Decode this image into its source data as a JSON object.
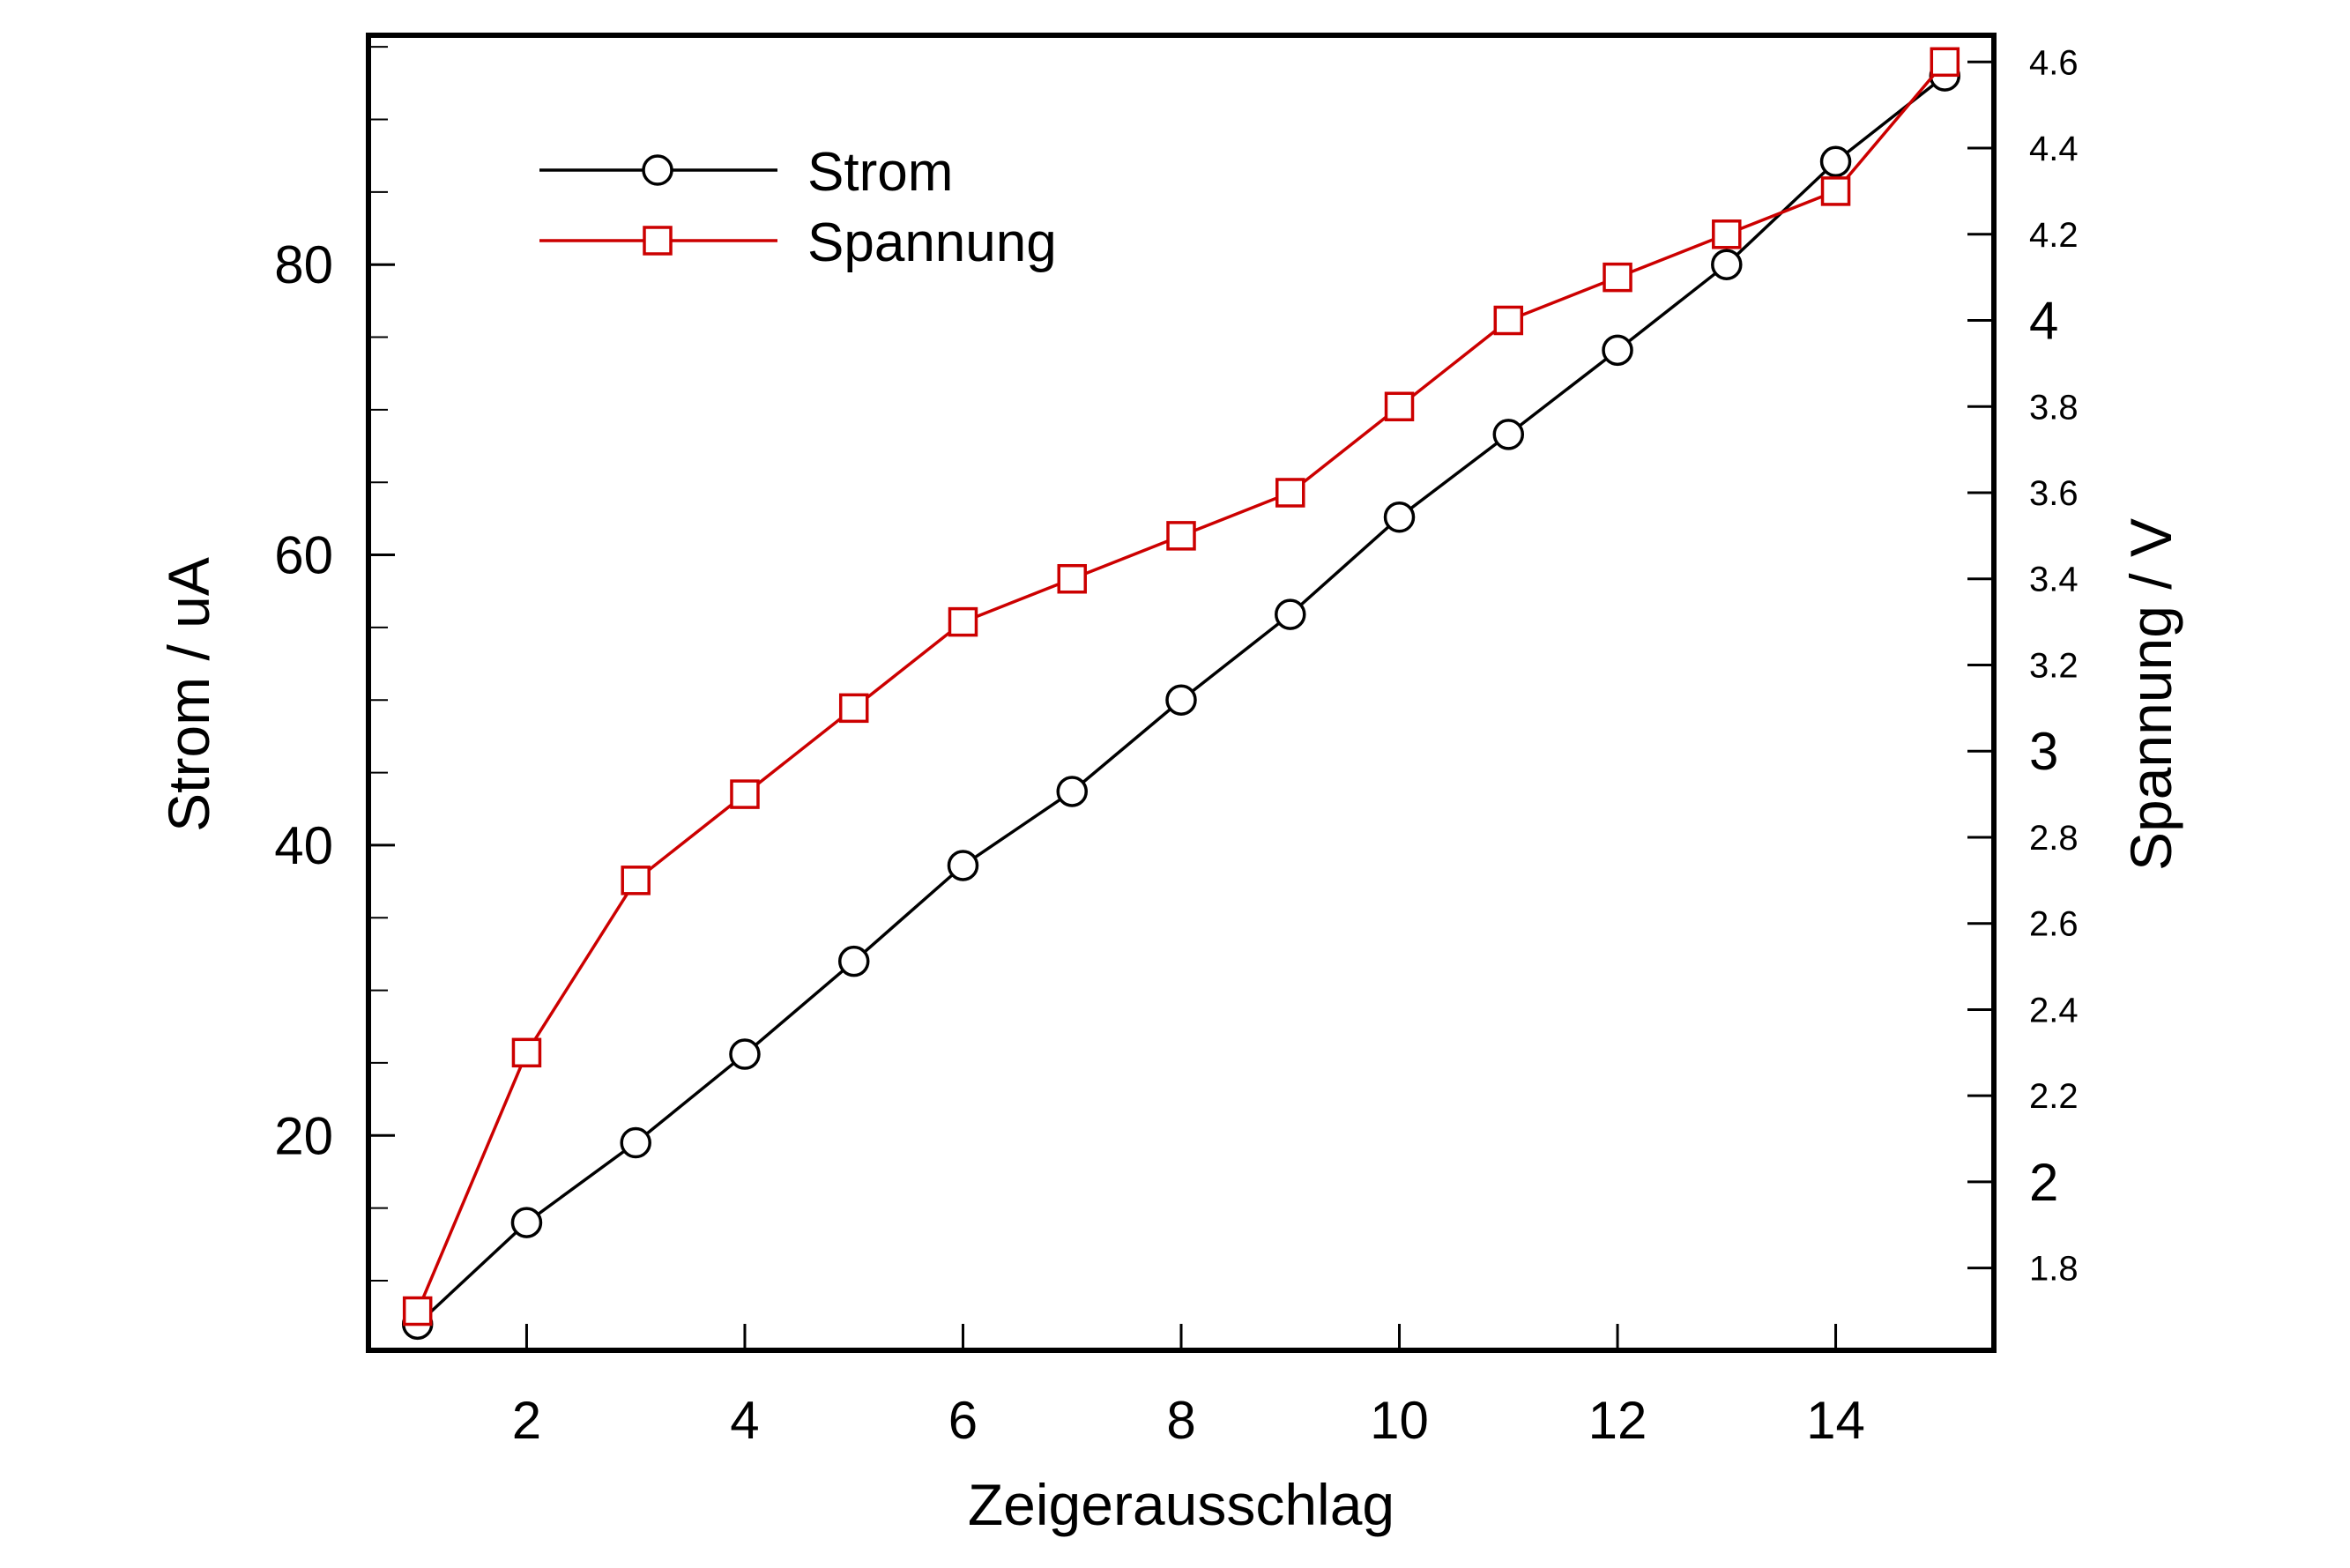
{
  "chart_data": {
    "type": "line",
    "title": "",
    "xlabel": "Zeigerausschlag",
    "ylabel": "Strom / uA",
    "y2label": "Spannung / V",
    "xlim": [
      0.55,
      15.45
    ],
    "ylim": [
      5.2,
      95.8
    ],
    "y2lim": [
      1.609,
      4.662
    ],
    "grid": false,
    "legend": "top-left",
    "x": [
      1,
      2,
      3,
      4,
      5,
      6,
      7,
      8,
      9,
      10,
      11,
      12,
      13,
      14,
      15
    ],
    "x_ticks": [
      "2",
      "4",
      "6",
      "8",
      "10",
      "12",
      "14"
    ],
    "y_ticks": [
      "20",
      "40",
      "60",
      "80"
    ],
    "y2_ticks": [
      {
        "label": "1.8",
        "value": 1.8,
        "major": false
      },
      {
        "label": "2",
        "value": 2.0,
        "major": true
      },
      {
        "label": "2.2",
        "value": 2.2,
        "major": false
      },
      {
        "label": "2.4",
        "value": 2.4,
        "major": false
      },
      {
        "label": "2.6",
        "value": 2.6,
        "major": false
      },
      {
        "label": "2.8",
        "value": 2.8,
        "major": false
      },
      {
        "label": "3",
        "value": 3.0,
        "major": true
      },
      {
        "label": "3.2",
        "value": 3.2,
        "major": false
      },
      {
        "label": "3.4",
        "value": 3.4,
        "major": false
      },
      {
        "label": "3.6",
        "value": 3.6,
        "major": false
      },
      {
        "label": "3.8",
        "value": 3.8,
        "major": false
      },
      {
        "label": "4",
        "value": 4.0,
        "major": true
      },
      {
        "label": "4.2",
        "value": 4.2,
        "major": false
      },
      {
        "label": "4.4",
        "value": 4.4,
        "major": false
      },
      {
        "label": "4.6",
        "value": 4.6,
        "major": false
      }
    ],
    "series": [
      {
        "name": "Strom",
        "axis": "left",
        "color": "#000000",
        "marker": "circle",
        "values": [
          7.0,
          14.0,
          19.5,
          25.6,
          32.0,
          38.6,
          43.7,
          50.0,
          55.9,
          62.6,
          68.3,
          74.1,
          80.0,
          87.1,
          93.0
        ]
      },
      {
        "name": "Spannung",
        "axis": "right",
        "color": "#cc0000",
        "marker": "square",
        "values": [
          1.7,
          2.3,
          2.7,
          2.9,
          3.1,
          3.3,
          3.4,
          3.5,
          3.6,
          3.8,
          4.0,
          4.1,
          4.2,
          4.3,
          4.6
        ]
      }
    ]
  }
}
